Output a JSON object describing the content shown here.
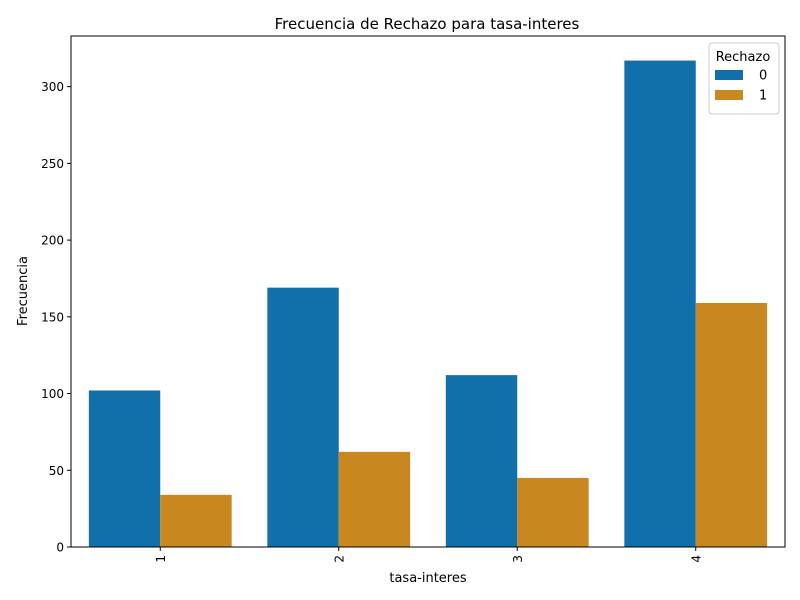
{
  "chart_data": {
    "type": "bar",
    "title": "Frecuencia de Rechazo para tasa-interes",
    "xlabel": "tasa-interes",
    "ylabel": "Frecuencia",
    "categories": [
      "1",
      "2",
      "3",
      "4"
    ],
    "series": [
      {
        "name": "0",
        "color": "#1170aa",
        "values": [
          102,
          169,
          112,
          317
        ]
      },
      {
        "name": "1",
        "color": "#c8871f",
        "values": [
          34,
          62,
          45,
          159
        ]
      }
    ],
    "ylim": [
      0,
      333
    ],
    "yticks": [
      0,
      50,
      100,
      150,
      200,
      250,
      300
    ],
    "grid": false,
    "legend": {
      "title": "Rechazo",
      "position": "top-right"
    }
  }
}
